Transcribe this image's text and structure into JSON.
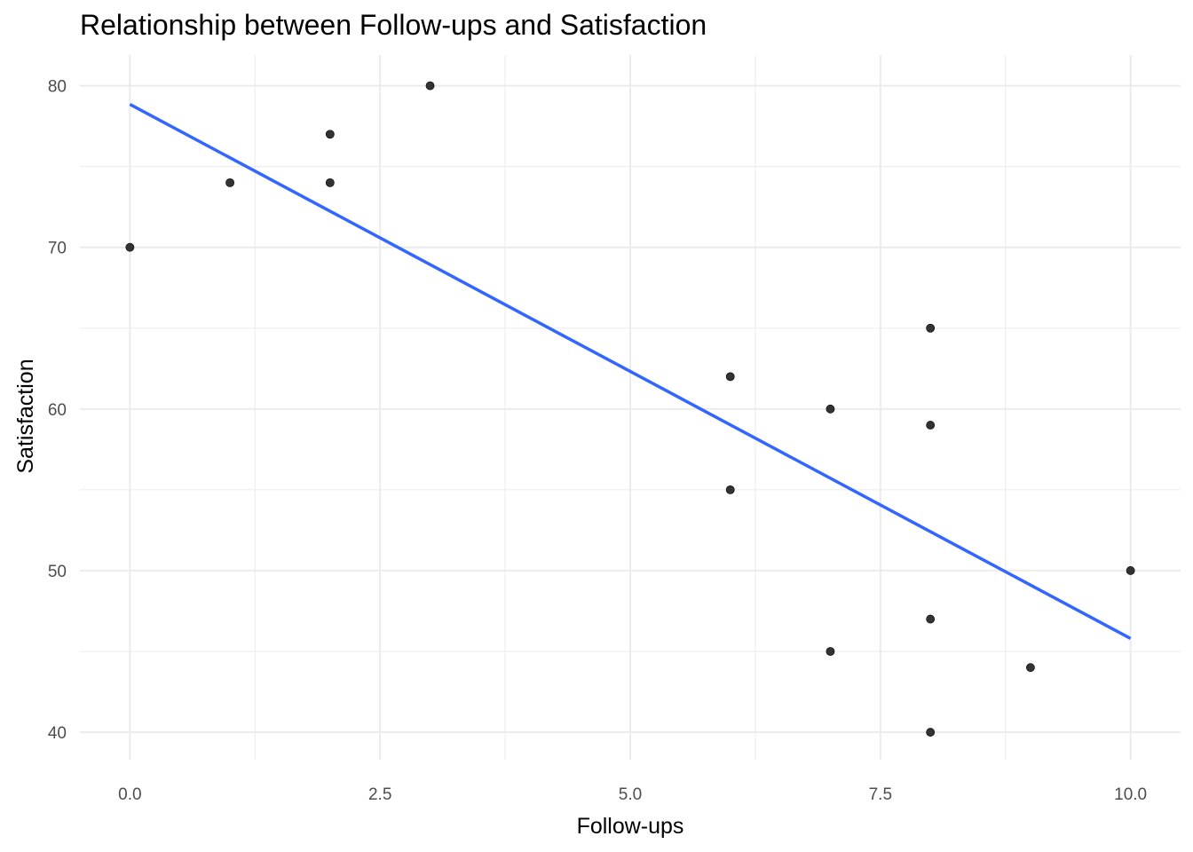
{
  "chart_data": {
    "type": "scatter",
    "title": "Relationship between Follow-ups and Satisfaction",
    "xlabel": "Follow-ups",
    "ylabel": "Satisfaction",
    "xlim": [
      -0.5,
      10.5
    ],
    "ylim": [
      38.3,
      81.9
    ],
    "x_ticks": [
      0,
      2.5,
      5,
      7.5,
      10
    ],
    "x_tick_labels": [
      "0.0",
      "2.5",
      "5.0",
      "7.5",
      "10.0"
    ],
    "y_ticks": [
      40,
      50,
      60,
      70,
      80
    ],
    "y_tick_labels": [
      "40",
      "50",
      "60",
      "70",
      "80"
    ],
    "grid": true,
    "points": [
      {
        "x": 0,
        "y": 70
      },
      {
        "x": 1,
        "y": 74
      },
      {
        "x": 2,
        "y": 77
      },
      {
        "x": 2,
        "y": 74
      },
      {
        "x": 3,
        "y": 80
      },
      {
        "x": 6,
        "y": 62
      },
      {
        "x": 6,
        "y": 55
      },
      {
        "x": 7,
        "y": 60
      },
      {
        "x": 7,
        "y": 45
      },
      {
        "x": 8,
        "y": 65
      },
      {
        "x": 8,
        "y": 59
      },
      {
        "x": 8,
        "y": 47
      },
      {
        "x": 8,
        "y": 40
      },
      {
        "x": 9,
        "y": 44
      },
      {
        "x": 10,
        "y": 50
      }
    ],
    "trend_line": {
      "x_start": 0,
      "y_start": 78.85,
      "x_end": 10,
      "y_end": 45.8
    },
    "colors": {
      "points": "#333333",
      "trend": "#3366ff",
      "grid": "#ebebeb",
      "tick_text": "#4d4d4d"
    }
  }
}
